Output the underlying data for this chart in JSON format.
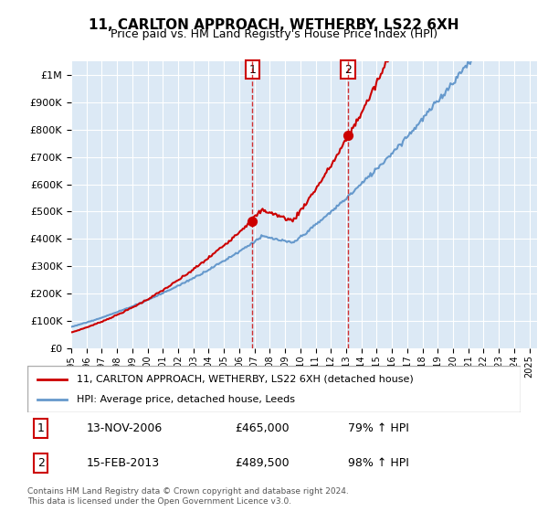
{
  "title": "11, CARLTON APPROACH, WETHERBY, LS22 6XH",
  "subtitle": "Price paid vs. HM Land Registry's House Price Index (HPI)",
  "legend_line1": "11, CARLTON APPROACH, WETHERBY, LS22 6XH (detached house)",
  "legend_line2": "HPI: Average price, detached house, Leeds",
  "sale1_label": "1",
  "sale1_date": "13-NOV-2006",
  "sale1_price": "£465,000",
  "sale1_hpi": "79% ↑ HPI",
  "sale2_label": "2",
  "sale2_date": "15-FEB-2013",
  "sale2_price": "£489,500",
  "sale2_hpi": "98% ↑ HPI",
  "footer": "Contains HM Land Registry data © Crown copyright and database right 2024.\nThis data is licensed under the Open Government Licence v3.0.",
  "sale1_year": 2006.87,
  "sale2_year": 2013.12,
  "sale1_price_val": 465000,
  "sale2_price_val": 489500,
  "red_line_color": "#cc0000",
  "blue_line_color": "#6699cc",
  "dot_color": "#cc0000",
  "vline_color": "#cc0000",
  "background_color": "#dce9f5",
  "plot_bg": "#ffffff",
  "ylim": [
    0,
    1050000
  ],
  "xlim_start": 1995.0,
  "xlim_end": 2025.5
}
